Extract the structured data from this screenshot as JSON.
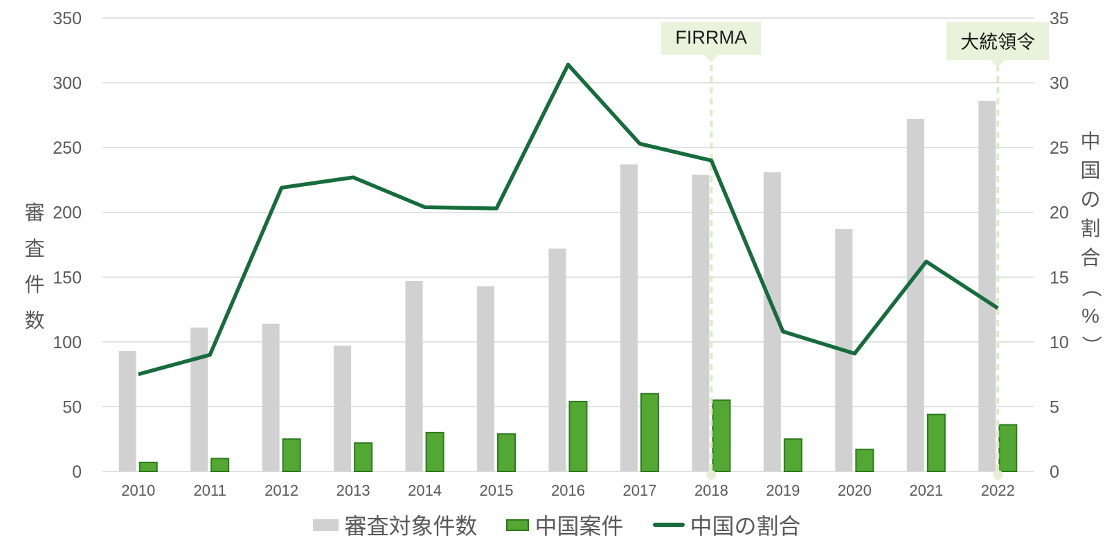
{
  "chart_data": {
    "type": "bar",
    "subtype": "combo-bar-line-dual-axis",
    "categories": [
      "2010",
      "2011",
      "2012",
      "2013",
      "2014",
      "2015",
      "2016",
      "2017",
      "2018",
      "2019",
      "2020",
      "2021",
      "2022"
    ],
    "series": [
      {
        "name": "審査対象件数",
        "type": "bar",
        "axis": "left",
        "color": "#d2d1d1",
        "values": [
          93,
          111,
          114,
          97,
          147,
          143,
          172,
          237,
          229,
          231,
          187,
          272,
          286
        ]
      },
      {
        "name": "中国案件",
        "type": "bar",
        "axis": "left",
        "color": "#53a733",
        "border_color": "#2e7a1e",
        "values": [
          7,
          10,
          25,
          22,
          30,
          29,
          54,
          60,
          55,
          25,
          17,
          44,
          36
        ]
      },
      {
        "name": "中国の割合",
        "type": "line",
        "axis": "right",
        "color": "#166c3c",
        "values": [
          7.5,
          9.0,
          21.9,
          22.7,
          20.4,
          20.3,
          31.4,
          25.3,
          24.0,
          10.8,
          9.1,
          16.2,
          12.6
        ]
      }
    ],
    "left_axis": {
      "label": "審査件数",
      "min": 0,
      "max": 350,
      "step": 50,
      "ticks": [
        "350",
        "300",
        "250",
        "200",
        "150",
        "100",
        "50",
        "0"
      ]
    },
    "right_axis": {
      "label": "中国の割合（%）",
      "min": 0,
      "max": 35,
      "step": 5,
      "ticks": [
        "35",
        "30",
        "25",
        "20",
        "15",
        "10",
        "5",
        "0"
      ]
    },
    "annotations": [
      {
        "label": "FIRRMA",
        "category": "2018"
      },
      {
        "label": "大統領令",
        "category": "2022"
      }
    ],
    "legend_position": "bottom",
    "grid": "horizontal",
    "colors": {
      "gridline": "#d9d9d9",
      "tick_text": "#595959",
      "annotation_bg": "#e9f2da",
      "annotation_dash": "#ddebc6",
      "annotation_dot": "#e6efd4"
    }
  }
}
